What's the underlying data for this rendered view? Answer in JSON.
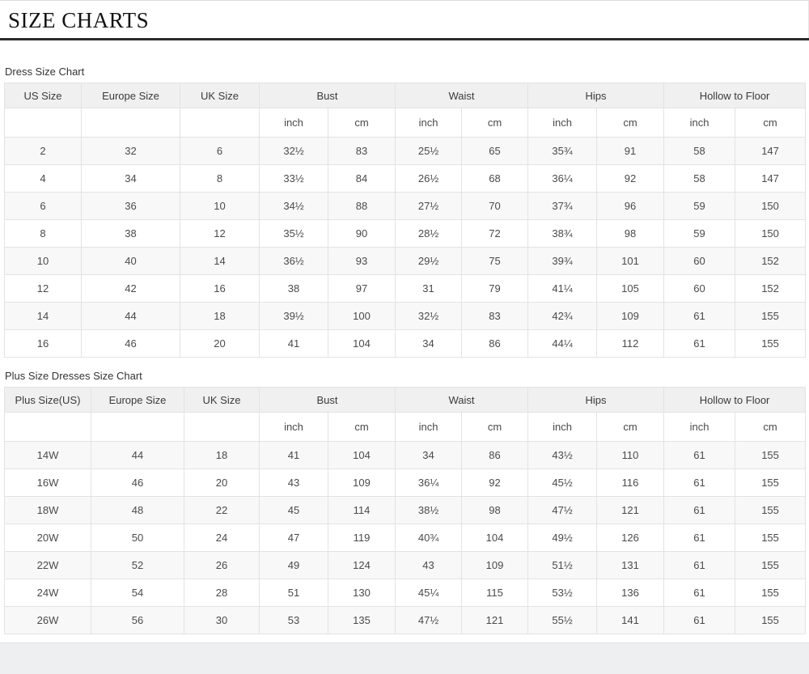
{
  "page": {
    "title": "SIZE CHARTS"
  },
  "tables": [
    {
      "label": "Dress Size Chart",
      "columns": [
        {
          "label": "US Size"
        },
        {
          "label": "Europe Size"
        },
        {
          "label": "UK Size"
        },
        {
          "label": "Bust",
          "subs": [
            "inch",
            "cm"
          ]
        },
        {
          "label": "Waist",
          "subs": [
            "inch",
            "cm"
          ]
        },
        {
          "label": "Hips",
          "subs": [
            "inch",
            "cm"
          ]
        },
        {
          "label": "Hollow to Floor",
          "subs": [
            "inch",
            "cm"
          ]
        }
      ],
      "rows": [
        [
          "2",
          "32",
          "6",
          "32½",
          "83",
          "25½",
          "65",
          "35¾",
          "91",
          "58",
          "147"
        ],
        [
          "4",
          "34",
          "8",
          "33½",
          "84",
          "26½",
          "68",
          "36¼",
          "92",
          "58",
          "147"
        ],
        [
          "6",
          "36",
          "10",
          "34½",
          "88",
          "27½",
          "70",
          "37¾",
          "96",
          "59",
          "150"
        ],
        [
          "8",
          "38",
          "12",
          "35½",
          "90",
          "28½",
          "72",
          "38¾",
          "98",
          "59",
          "150"
        ],
        [
          "10",
          "40",
          "14",
          "36½",
          "93",
          "29½",
          "75",
          "39¾",
          "101",
          "60",
          "152"
        ],
        [
          "12",
          "42",
          "16",
          "38",
          "97",
          "31",
          "79",
          "41¼",
          "105",
          "60",
          "152"
        ],
        [
          "14",
          "44",
          "18",
          "39½",
          "100",
          "32½",
          "83",
          "42¾",
          "109",
          "61",
          "155"
        ],
        [
          "16",
          "46",
          "20",
          "41",
          "104",
          "34",
          "86",
          "44¼",
          "112",
          "61",
          "155"
        ]
      ]
    },
    {
      "label": "Plus Size Dresses Size Chart",
      "columns": [
        {
          "label": "Plus Size(US)"
        },
        {
          "label": "Europe Size"
        },
        {
          "label": "UK Size"
        },
        {
          "label": "Bust",
          "subs": [
            "inch",
            "cm"
          ]
        },
        {
          "label": "Waist",
          "subs": [
            "inch",
            "cm"
          ]
        },
        {
          "label": "Hips",
          "subs": [
            "inch",
            "cm"
          ]
        },
        {
          "label": "Hollow to Floor",
          "subs": [
            "inch",
            "cm"
          ]
        }
      ],
      "rows": [
        [
          "14W",
          "44",
          "18",
          "41",
          "104",
          "34",
          "86",
          "43½",
          "110",
          "61",
          "155"
        ],
        [
          "16W",
          "46",
          "20",
          "43",
          "109",
          "36¼",
          "92",
          "45½",
          "116",
          "61",
          "155"
        ],
        [
          "18W",
          "48",
          "22",
          "45",
          "114",
          "38½",
          "98",
          "47½",
          "121",
          "61",
          "155"
        ],
        [
          "20W",
          "50",
          "24",
          "47",
          "119",
          "40¾",
          "104",
          "49½",
          "126",
          "61",
          "155"
        ],
        [
          "22W",
          "52",
          "26",
          "49",
          "124",
          "43",
          "109",
          "51½",
          "131",
          "61",
          "155"
        ],
        [
          "24W",
          "54",
          "28",
          "51",
          "130",
          "45¼",
          "115",
          "53½",
          "136",
          "61",
          "155"
        ],
        [
          "26W",
          "56",
          "30",
          "53",
          "135",
          "47½",
          "121",
          "55½",
          "141",
          "61",
          "155"
        ]
      ]
    }
  ],
  "colors": {
    "header_bg": "#f0f0f0",
    "row_alt_bg": "#f8f8f8",
    "grid_border": "#e3e3e3",
    "rule": "#2b2b2b",
    "bottom_band": "#edeff0",
    "text": "#4a4a4a"
  }
}
